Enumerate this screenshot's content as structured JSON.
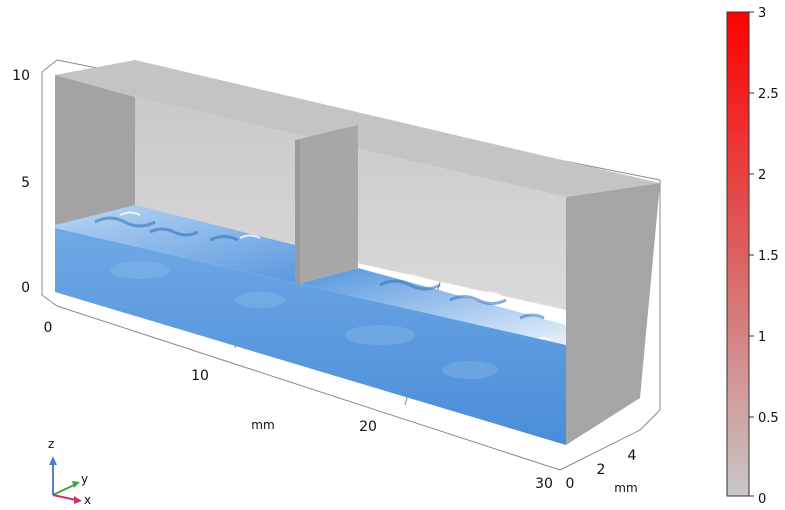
{
  "plot": {
    "z_axis_ticks": [
      "10",
      "5",
      "0"
    ],
    "x_axis_ticks": [
      "0",
      "10",
      "20",
      "30"
    ],
    "x_axis_unit": "mm",
    "y_axis_ticks": [
      "0",
      "2",
      "4"
    ],
    "y_axis_unit": "mm"
  },
  "colorbar": {
    "ticks": [
      "3",
      "2.5",
      "2",
      "1.5",
      "1",
      "0.5",
      "0"
    ],
    "color_top": "#ff0000",
    "color_bottom": "#c8c8c8"
  },
  "triad": {
    "z_label": "z",
    "y_label": "y",
    "x_label": "x",
    "z_color": "#4f7fd0",
    "y_color": "#3aa83a",
    "x_color": "#d0306a"
  },
  "colors": {
    "water_front": "#5b9be0",
    "water_top": "#6aa6e4",
    "box_top": "#c6c6c6",
    "box_wall_dark": "#9d9d9d",
    "box_back": "#d2d2d2",
    "box_side": "#a6a6a6"
  }
}
